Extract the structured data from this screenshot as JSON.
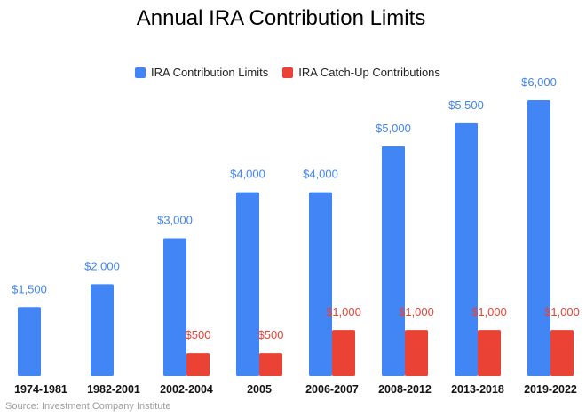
{
  "chart_data": {
    "type": "bar",
    "title": "Annual IRA Contribution Limits",
    "categories": [
      "1974-1981",
      "1982-2001",
      "2002-2004",
      "2005",
      "2006-2007",
      "2008-2012",
      "2013-2018",
      "2019-2022"
    ],
    "series": [
      {
        "name": "IRA Contribution Limits",
        "color": "#4285f4",
        "values": [
          1500,
          2000,
          3000,
          4000,
          4000,
          5000,
          5500,
          6000
        ],
        "labels": [
          "$1,500",
          "$2,000",
          "$3,000",
          "$4,000",
          "$4,000",
          "$5,000",
          "$5,500",
          "$6,000"
        ]
      },
      {
        "name": "IRA Catch-Up Contributions",
        "color": "#ea4335",
        "values": [
          null,
          null,
          500,
          500,
          1000,
          1000,
          1000,
          1000
        ],
        "labels": [
          null,
          null,
          "$500",
          "$500",
          "$1,000",
          "$1,000",
          "$1,000",
          "$1,000"
        ]
      }
    ],
    "ylim": [
      0,
      6000
    ],
    "legend_position": "top",
    "grid": false,
    "xlabel": "",
    "ylabel": ""
  },
  "source": "Source: Investment Company Institute"
}
